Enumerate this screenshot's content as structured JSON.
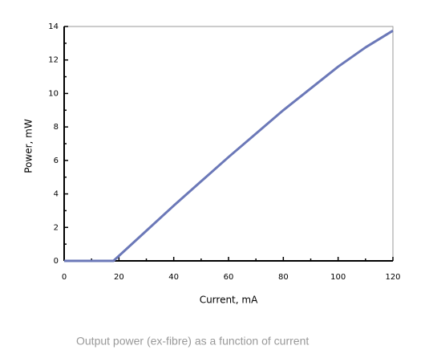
{
  "chart_data": {
    "type": "line",
    "x_label": "Current, mA",
    "y_label": "Power, mW",
    "caption": "Output power (ex-fibre) as a function of current",
    "x": [
      0,
      18,
      20,
      30,
      40,
      50,
      60,
      70,
      80,
      90,
      100,
      110,
      120
    ],
    "series": [
      {
        "color": "#6b78b8",
        "values": [
          0,
          0,
          0.3,
          1.8,
          3.3,
          4.75,
          6.2,
          7.6,
          9.0,
          10.3,
          11.6,
          12.75,
          13.75
        ]
      }
    ],
    "xlim": [
      0,
      120
    ],
    "xticks": [
      0,
      20,
      40,
      60,
      80,
      100,
      120
    ],
    "ylim": [
      0,
      14
    ],
    "yticks": [
      0,
      2,
      4,
      6,
      8,
      10,
      12,
      14
    ]
  }
}
